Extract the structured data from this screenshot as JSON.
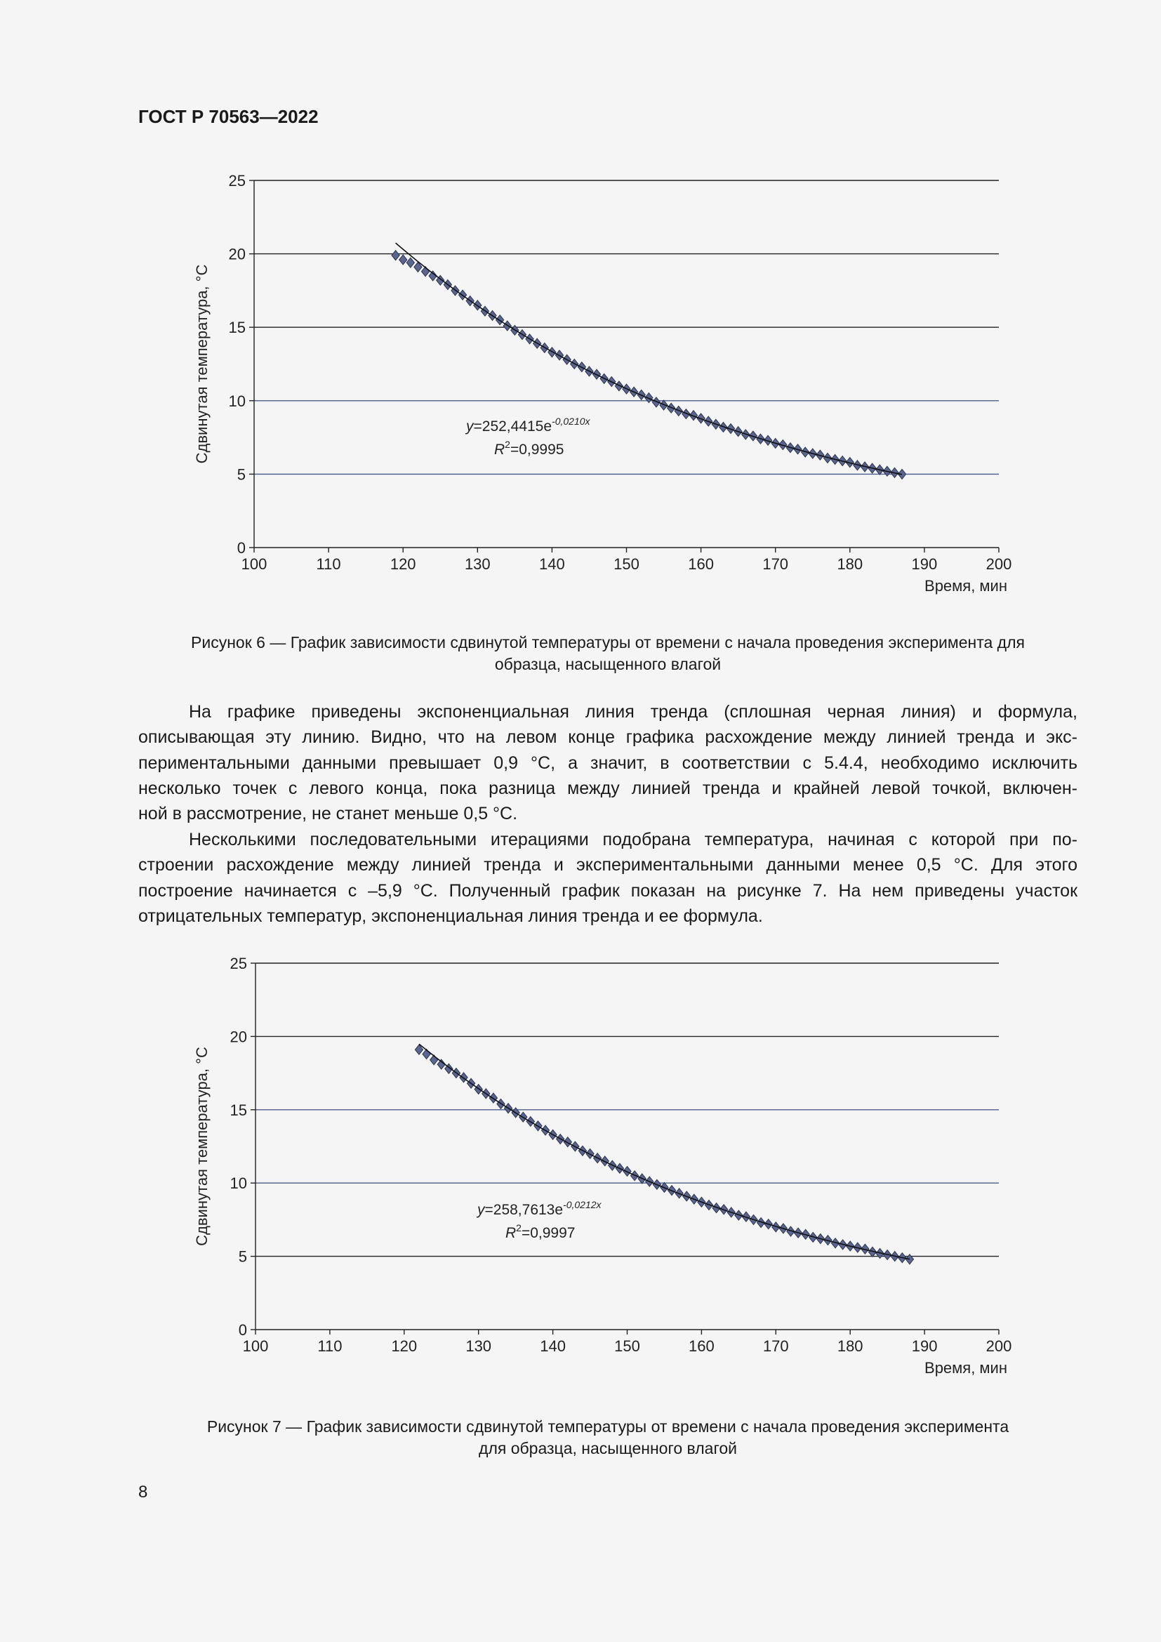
{
  "header": {
    "doc_code": "ГОСТ Р 70563—2022"
  },
  "figure6": {
    "caption_lines": [
      "Рисунок 6 — График зависимости сдвинутой температуры от времени с начала проведения эксперимента для",
      "образца, насыщенного влагой"
    ]
  },
  "paragraphs": [
    [
      "На графике приведены экспоненциальная линия тренда (сплошная черная линия) и формула,",
      "описывающая эту линию. Видно, что на левом конце графика расхождение между линией тренда и экс-",
      "периментальными данными превышает 0,9 °С, а значит, в соответствии с 5.4.4, необходимо исключить",
      "несколько точек с левого конца, пока разница между линией тренда и крайней левой точкой, включен-",
      "ной в рассмотрение, не станет меньше 0,5 °С."
    ],
    [
      "Несколькими последовательными итерациями подобрана температура, начиная с которой при по-",
      "строении расхождение между линией тренда и экспериментальными данными менее 0,5 °С. Для этого",
      "построение начинается с –5,9 °С. Полученный график показан на рисунке 7. На нем приведены участок",
      "отрицательных температур, экспоненциальная линия тренда и ее формула."
    ]
  ],
  "figure7": {
    "caption_lines": [
      "Рисунок 7 — График зависимости сдвинутой температуры от времени с начала проведения эксперимента",
      "для образца, насыщенного влагой"
    ]
  },
  "page_number": "8",
  "chart_data": [
    {
      "type": "scatter",
      "xlabel": "Время, мин",
      "ylabel": "Сдвинутая температура, °С",
      "xlim": [
        100,
        200
      ],
      "ylim": [
        0,
        25
      ],
      "xticks": [
        "100",
        "110",
        "120",
        "130",
        "140",
        "150",
        "160",
        "170",
        "180",
        "190",
        "200"
      ],
      "yticks": [
        "0",
        "5",
        "10",
        "15",
        "20",
        "25"
      ],
      "grid": "horizontal",
      "marker": "diamond",
      "marker_color": "#5a6690",
      "trendline": {
        "type": "exponential",
        "a": 252.4415,
        "b": -0.021,
        "x_range": [
          119,
          187
        ]
      },
      "equation": {
        "prefix": "y",
        "body": "=252,4415e",
        "exponent": "-0,0210x",
        "r2_label": "R",
        "r2_sup": "2",
        "r2_value": "=0,9995"
      },
      "x": [
        119,
        120,
        121,
        122,
        123,
        124,
        125,
        126,
        127,
        128,
        129,
        130,
        131,
        132,
        133,
        134,
        135,
        136,
        137,
        138,
        139,
        140,
        141,
        142,
        143,
        144,
        145,
        146,
        147,
        148,
        149,
        150,
        151,
        152,
        153,
        154,
        155,
        156,
        157,
        158,
        159,
        160,
        161,
        162,
        163,
        164,
        165,
        166,
        167,
        168,
        169,
        170,
        171,
        172,
        173,
        174,
        175,
        176,
        177,
        178,
        179,
        180,
        181,
        182,
        183,
        184,
        185,
        186,
        187
      ],
      "y": [
        19.9,
        19.6,
        19.4,
        19.1,
        18.8,
        18.5,
        18.2,
        17.9,
        17.5,
        17.2,
        16.8,
        16.5,
        16.1,
        15.8,
        15.5,
        15.1,
        14.8,
        14.5,
        14.2,
        13.9,
        13.6,
        13.3,
        13.1,
        12.8,
        12.5,
        12.3,
        12.0,
        11.8,
        11.5,
        11.3,
        11.0,
        10.8,
        10.6,
        10.4,
        10.2,
        9.9,
        9.7,
        9.5,
        9.3,
        9.1,
        9.0,
        8.8,
        8.6,
        8.4,
        8.2,
        8.1,
        7.9,
        7.7,
        7.6,
        7.4,
        7.3,
        7.1,
        7.0,
        6.8,
        6.7,
        6.5,
        6.4,
        6.3,
        6.1,
        6.0,
        5.9,
        5.8,
        5.6,
        5.5,
        5.4,
        5.3,
        5.2,
        5.1,
        5.0
      ]
    },
    {
      "type": "scatter",
      "xlabel": "Время, мин",
      "ylabel": "Сдвинутая температура, °С",
      "xlim": [
        100,
        200
      ],
      "ylim": [
        0,
        25
      ],
      "xticks": [
        "100",
        "110",
        "120",
        "130",
        "140",
        "150",
        "160",
        "170",
        "180",
        "190",
        "200"
      ],
      "yticks": [
        "0",
        "5",
        "10",
        "15",
        "20",
        "25"
      ],
      "grid": "horizontal",
      "marker": "diamond",
      "marker_color": "#5a6690",
      "trendline": {
        "type": "exponential",
        "a": 258.7613,
        "b": -0.0212,
        "x_range": [
          122,
          188
        ]
      },
      "equation": {
        "prefix": "y",
        "body": "=258,7613e",
        "exponent": "-0,0212x",
        "r2_label": "R",
        "r2_sup": "2",
        "r2_value": "=0,9997"
      },
      "x": [
        122,
        123,
        124,
        125,
        126,
        127,
        128,
        129,
        130,
        131,
        132,
        133,
        134,
        135,
        136,
        137,
        138,
        139,
        140,
        141,
        142,
        143,
        144,
        145,
        146,
        147,
        148,
        149,
        150,
        151,
        152,
        153,
        154,
        155,
        156,
        157,
        158,
        159,
        160,
        161,
        162,
        163,
        164,
        165,
        166,
        167,
        168,
        169,
        170,
        171,
        172,
        173,
        174,
        175,
        176,
        177,
        178,
        179,
        180,
        181,
        182,
        183,
        184,
        185,
        186,
        187,
        188
      ],
      "y": [
        19.1,
        18.8,
        18.4,
        18.1,
        17.8,
        17.5,
        17.2,
        16.8,
        16.4,
        16.1,
        15.8,
        15.4,
        15.1,
        14.8,
        14.5,
        14.2,
        13.9,
        13.6,
        13.3,
        13.0,
        12.8,
        12.5,
        12.2,
        12.0,
        11.7,
        11.5,
        11.2,
        11.0,
        10.8,
        10.5,
        10.3,
        10.1,
        9.9,
        9.7,
        9.5,
        9.3,
        9.1,
        8.9,
        8.7,
        8.5,
        8.3,
        8.2,
        8.0,
        7.8,
        7.7,
        7.5,
        7.3,
        7.2,
        7.0,
        6.9,
        6.7,
        6.6,
        6.5,
        6.3,
        6.2,
        6.1,
        5.9,
        5.8,
        5.7,
        5.6,
        5.5,
        5.3,
        5.2,
        5.1,
        5.0,
        4.9,
        4.8
      ]
    }
  ]
}
